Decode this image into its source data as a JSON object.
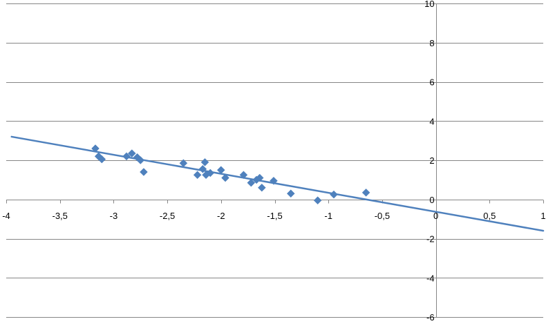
{
  "chart_data": {
    "type": "scatter",
    "title": "",
    "xlabel": "",
    "ylabel": "",
    "xlim": [
      -4,
      1
    ],
    "ylim": [
      -6,
      10
    ],
    "x_ticks": [
      -4,
      -3.5,
      -3,
      -2.5,
      -2,
      -1.5,
      -1,
      -0.5,
      0,
      0.5,
      1
    ],
    "x_tick_labels": [
      "-4",
      "-3,5",
      "-3",
      "-2,5",
      "-2",
      "-1,5",
      "-1",
      "-0,5",
      "0",
      "0,5",
      "1"
    ],
    "y_ticks": [
      -6,
      -4,
      -2,
      0,
      2,
      4,
      6,
      8,
      10
    ],
    "y_tick_labels": [
      "-6",
      "-4",
      "-2",
      "0",
      "2",
      "4",
      "6",
      "8",
      "10"
    ],
    "grid": "horizontal",
    "legend": "none",
    "marker": "diamond",
    "series": [
      {
        "x": [
          -3.17,
          -3.14,
          -3.11,
          -2.88,
          -2.83,
          -2.78,
          -2.75,
          -2.72,
          -2.35,
          -2.22,
          -2.17,
          -2.15,
          -2.14,
          -2.1,
          -2.0,
          -1.96,
          -1.79,
          -1.72,
          -1.67,
          -1.64,
          -1.62,
          -1.51,
          -1.35,
          -1.1,
          -0.95,
          -0.65
        ],
        "y": [
          2.6,
          2.2,
          2.05,
          2.2,
          2.35,
          2.15,
          2.0,
          1.4,
          1.85,
          1.25,
          1.55,
          1.9,
          1.25,
          1.35,
          1.5,
          1.1,
          1.25,
          0.85,
          1.0,
          1.1,
          0.6,
          0.95,
          0.3,
          -0.05,
          0.25,
          0.35
        ],
        "color": "#4f81bd"
      }
    ],
    "trendline": {
      "type": "linear",
      "x": [
        -3.95,
        1.0
      ],
      "y": [
        3.2,
        -1.6
      ],
      "color": "#4f81bd"
    }
  }
}
